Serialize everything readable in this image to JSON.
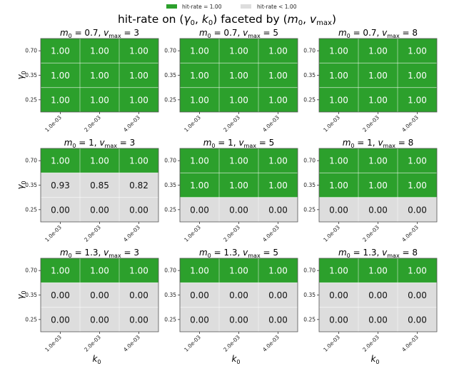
{
  "chart_data": {
    "type": "heatmap",
    "title_parts": [
      "hit-rate on (",
      "γ",
      "0",
      ", ",
      "k",
      "0",
      ") faceted by (",
      "m",
      "0",
      ",  ",
      "v",
      "max",
      ")"
    ],
    "legend": {
      "placement": "top-center",
      "entries": [
        {
          "label": "hit-rate = 1.00",
          "color": "#2ca02c"
        },
        {
          "label": "hit-rate < 1.00",
          "color": "#dddddd"
        }
      ]
    },
    "colors": {
      "full": "#2ca02c",
      "partial": "#dddddd",
      "text_full": "#ffffff",
      "text_partial": "#111111"
    },
    "xlabel": {
      "base": "k",
      "sub": "0"
    },
    "ylabel": {
      "base": "γ",
      "sub": "0"
    },
    "x_ticks": [
      "1.0e-03",
      "2.0e-03",
      "4.0e-03"
    ],
    "y_ticks": [
      "0.70",
      "0.35",
      "0.25"
    ],
    "facets": [
      {
        "m0": "0.7",
        "vmax": "3",
        "values": [
          [
            1.0,
            1.0,
            1.0
          ],
          [
            1.0,
            1.0,
            1.0
          ],
          [
            1.0,
            1.0,
            1.0
          ]
        ]
      },
      {
        "m0": "0.7",
        "vmax": "5",
        "values": [
          [
            1.0,
            1.0,
            1.0
          ],
          [
            1.0,
            1.0,
            1.0
          ],
          [
            1.0,
            1.0,
            1.0
          ]
        ]
      },
      {
        "m0": "0.7",
        "vmax": "8",
        "values": [
          [
            1.0,
            1.0,
            1.0
          ],
          [
            1.0,
            1.0,
            1.0
          ],
          [
            1.0,
            1.0,
            1.0
          ]
        ]
      },
      {
        "m0": "1",
        "vmax": "3",
        "values": [
          [
            1.0,
            1.0,
            1.0
          ],
          [
            0.93,
            0.85,
            0.82
          ],
          [
            0.0,
            0.0,
            0.0
          ]
        ]
      },
      {
        "m0": "1",
        "vmax": "5",
        "values": [
          [
            1.0,
            1.0,
            1.0
          ],
          [
            1.0,
            1.0,
            1.0
          ],
          [
            0.0,
            0.0,
            0.0
          ]
        ]
      },
      {
        "m0": "1",
        "vmax": "8",
        "values": [
          [
            1.0,
            1.0,
            1.0
          ],
          [
            1.0,
            1.0,
            1.0
          ],
          [
            0.0,
            0.0,
            0.0
          ]
        ]
      },
      {
        "m0": "1.3",
        "vmax": "3",
        "values": [
          [
            1.0,
            1.0,
            1.0
          ],
          [
            0.0,
            0.0,
            0.0
          ],
          [
            0.0,
            0.0,
            0.0
          ]
        ]
      },
      {
        "m0": "1.3",
        "vmax": "5",
        "values": [
          [
            1.0,
            1.0,
            1.0
          ],
          [
            0.0,
            0.0,
            0.0
          ],
          [
            0.0,
            0.0,
            0.0
          ]
        ]
      },
      {
        "m0": "1.3",
        "vmax": "8",
        "values": [
          [
            1.0,
            1.0,
            1.0
          ],
          [
            0.0,
            0.0,
            0.0
          ],
          [
            0.0,
            0.0,
            0.0
          ]
        ]
      }
    ]
  }
}
